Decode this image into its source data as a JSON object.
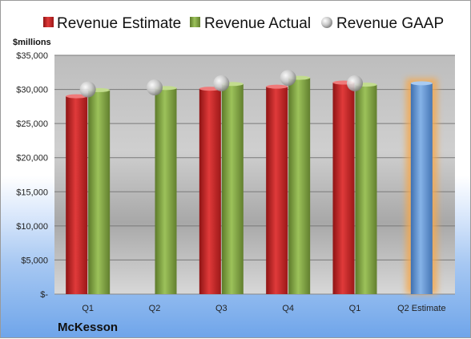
{
  "chart_data": {
    "type": "bar",
    "company": "McKesson",
    "unit_label": "$millions",
    "categories": [
      "Q1",
      "Q2",
      "Q3",
      "Q4",
      "Q1",
      "Q2 Estimate"
    ],
    "y_ticks": [
      "$-",
      "$5,000",
      "$10,000",
      "$15,000",
      "$20,000",
      "$25,000",
      "$30,000",
      "$35,000"
    ],
    "ylim": [
      0,
      35000
    ],
    "series": [
      {
        "name": "Revenue Estimate",
        "kind": "bar",
        "color": "#d32f2f",
        "values": [
          29000,
          null,
          30100,
          30400,
          31000,
          null
        ]
      },
      {
        "name": "Revenue Actual",
        "kind": "bar",
        "color": "#8bb04b",
        "values": [
          29900,
          30200,
          30800,
          31700,
          30700,
          null
        ]
      },
      {
        "name": "Revenue GAAP",
        "kind": "marker",
        "color": "#c8c8c8",
        "values": [
          30000,
          30300,
          30900,
          31700,
          30900,
          null
        ]
      }
    ],
    "estimate_bar": {
      "category_index": 5,
      "value": 30900,
      "color": "#6f9fd8",
      "glow": "#f4a94f"
    },
    "grid": true
  }
}
